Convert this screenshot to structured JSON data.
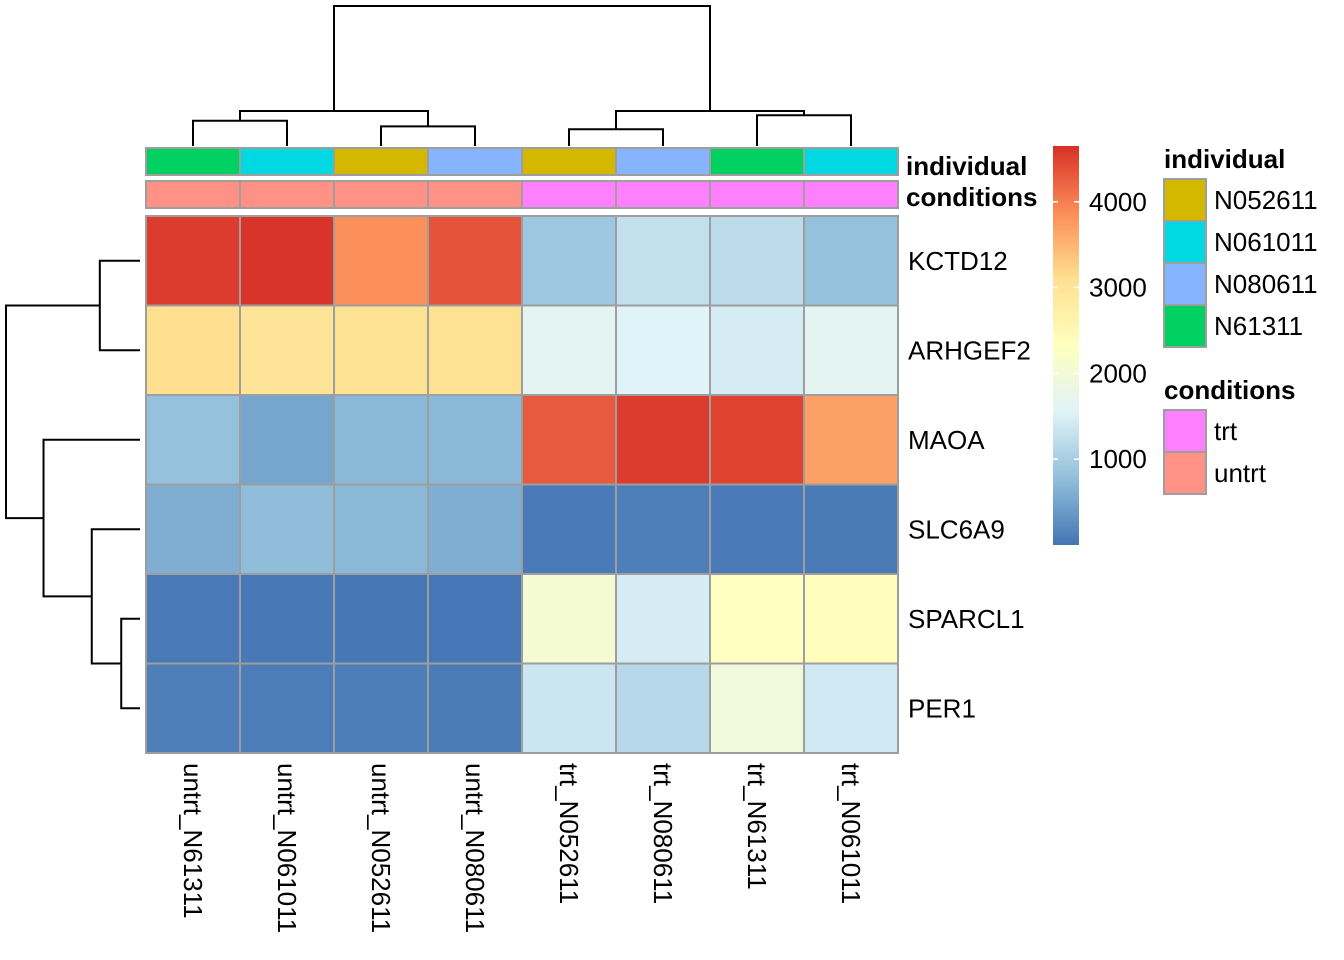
{
  "chart_data": {
    "type": "heatmap",
    "rows": [
      "KCTD12",
      "ARHGEF2",
      "MAOA",
      "SLC6A9",
      "SPARCL1",
      "PER1"
    ],
    "columns": [
      "untrt_N61311",
      "untrt_N061011",
      "untrt_N052611",
      "untrt_N080611",
      "trt_N052611",
      "trt_N080611",
      "trt_N61311",
      "trt_N061011"
    ],
    "values": [
      [
        4550,
        4620,
        3850,
        4350,
        900,
        1250,
        1200,
        800
      ],
      [
        3100,
        3000,
        3050,
        3050,
        1650,
        1550,
        1450,
        1650
      ],
      [
        800,
        500,
        700,
        700,
        4300,
        4550,
        4500,
        3700
      ],
      [
        600,
        750,
        700,
        600,
        50,
        100,
        50,
        60
      ],
      [
        40,
        30,
        20,
        10,
        2050,
        1450,
        2300,
        2350
      ],
      [
        100,
        80,
        90,
        70,
        1350,
        1150,
        1950,
        1400
      ]
    ],
    "color_scale": {
      "min": 0,
      "max": 4650,
      "ticks": [
        1000,
        2000,
        3000,
        4000
      ],
      "stops": [
        "#4575B4",
        "#91BFDB",
        "#E0F3F8",
        "#FFFFBF",
        "#FEE090",
        "#FC8D59",
        "#D73027"
      ]
    },
    "annotations": {
      "individual": {
        "title": "individual",
        "values": [
          "N61311",
          "N061011",
          "N052611",
          "N080611",
          "N052611",
          "N080611",
          "N61311",
          "N061011"
        ],
        "legend": [
          {
            "label": "N052611",
            "color": "#D4B800"
          },
          {
            "label": "N061011",
            "color": "#00D9E1"
          },
          {
            "label": "N080611",
            "color": "#87B4FF"
          },
          {
            "label": "N61311",
            "color": "#00D161"
          }
        ]
      },
      "conditions": {
        "title": "conditions",
        "values": [
          "untrt",
          "untrt",
          "untrt",
          "untrt",
          "trt",
          "trt",
          "trt",
          "trt"
        ],
        "legend": [
          {
            "label": "trt",
            "color": "#FF80FF"
          },
          {
            "label": "untrt",
            "color": "#FF9185"
          }
        ]
      }
    },
    "col_dendrogram": [
      [
        0,
        1,
        0.18
      ],
      [
        2,
        3,
        0.14
      ],
      [
        -1,
        -2,
        0.25
      ],
      [
        6,
        7,
        0.22
      ],
      [
        4,
        5,
        0.12
      ],
      [
        -4,
        -5,
        0.25
      ],
      [
        -3,
        -6,
        1.0
      ]
    ],
    "row_dendrogram": [
      [
        0,
        1,
        0.3
      ],
      [
        4,
        5,
        0.14
      ],
      [
        3,
        -2,
        0.36
      ],
      [
        2,
        -3,
        0.72
      ],
      [
        -1,
        -4,
        1.0
      ]
    ]
  }
}
